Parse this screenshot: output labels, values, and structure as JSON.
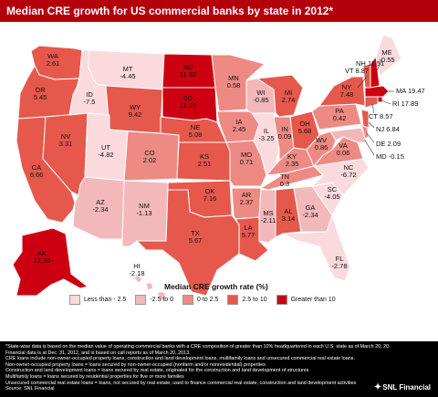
{
  "title": "Median CRE growth for US commercial banks by state in 2012*",
  "colors": {
    "lt_neg25": "#fadadd",
    "neg25_0": "#f2b8ba",
    "r0_25": "#ee8a84",
    "r25_10": "#e6584c",
    "gt10": "#cc0010"
  },
  "states": [
    {
      "abbr": "WA",
      "value": "2.61"
    },
    {
      "abbr": "OR",
      "value": "5.45"
    },
    {
      "abbr": "CA",
      "value": "6.66"
    },
    {
      "abbr": "NV",
      "value": "3.31"
    },
    {
      "abbr": "ID",
      "value": "-7.5"
    },
    {
      "abbr": "MT",
      "value": "-4.45"
    },
    {
      "abbr": "WY",
      "value": "9.42"
    },
    {
      "abbr": "UT",
      "value": "-4.82"
    },
    {
      "abbr": "AZ",
      "value": "-2.34"
    },
    {
      "abbr": "CO",
      "value": "2.02"
    },
    {
      "abbr": "NM",
      "value": "-1.13"
    },
    {
      "abbr": "ND",
      "value": "11.92"
    },
    {
      "abbr": "SD",
      "value": "11.21"
    },
    {
      "abbr": "NE",
      "value": "5.08"
    },
    {
      "abbr": "KS",
      "value": "2.51"
    },
    {
      "abbr": "OK",
      "value": "7.16"
    },
    {
      "abbr": "TX",
      "value": "5.67"
    },
    {
      "abbr": "MN",
      "value": "0.58"
    },
    {
      "abbr": "IA",
      "value": "2.45"
    },
    {
      "abbr": "MO",
      "value": "0.71"
    },
    {
      "abbr": "AR",
      "value": "2.37"
    },
    {
      "abbr": "LA",
      "value": "5.77"
    },
    {
      "abbr": "WI",
      "value": "-0.85"
    },
    {
      "abbr": "IL",
      "value": "-3.25"
    },
    {
      "abbr": "MI",
      "value": "2.74"
    },
    {
      "abbr": "IN",
      "value": "0.09"
    },
    {
      "abbr": "OH",
      "value": "5.68"
    },
    {
      "abbr": "KY",
      "value": "2.35"
    },
    {
      "abbr": "TN",
      "value": "0.3"
    },
    {
      "abbr": "MS",
      "value": "-2.11"
    },
    {
      "abbr": "AL",
      "value": "3.14"
    },
    {
      "abbr": "GA",
      "value": "-2.34"
    },
    {
      "abbr": "FL",
      "value": "-2.78"
    },
    {
      "abbr": "SC",
      "value": "-4.05"
    },
    {
      "abbr": "NC",
      "value": "-6.72"
    },
    {
      "abbr": "VA",
      "value": "0.06"
    },
    {
      "abbr": "WV",
      "value": "0.86"
    },
    {
      "abbr": "PA",
      "value": "0.42"
    },
    {
      "abbr": "NY",
      "value": "7.48"
    },
    {
      "abbr": "VT",
      "value": "8.87"
    },
    {
      "abbr": "NH",
      "value": "11.51"
    },
    {
      "abbr": "ME",
      "value": "-0.55"
    },
    {
      "abbr": "MA",
      "value": "19.47"
    },
    {
      "abbr": "RI",
      "value": "17.89"
    },
    {
      "abbr": "CT",
      "value": "8.57"
    },
    {
      "abbr": "NJ",
      "value": "6.84"
    },
    {
      "abbr": "DE",
      "value": "2.09"
    },
    {
      "abbr": "MD",
      "value": "-0.15"
    },
    {
      "abbr": "AK",
      "value": "12.36"
    },
    {
      "abbr": "HI",
      "value": "-2.18"
    }
  ],
  "legend": {
    "title": "Median CRE growth rate (%)",
    "items": [
      "Less than - 2.5",
      "-2.5 to 0",
      "0 to 2.5",
      "2.5 to 10",
      "Greater than 10"
    ]
  },
  "footer": {
    "lines": [
      "*State-wise data is based on the median value of operating commercial banks with a CRE composition of greater than 10% headquartered in each U.S. state as of March 20, 2013.",
      "Financial data is at Dec. 31, 2012, and is based on call reports as of March 20, 2013.",
      "CRE loans include non-owner-occupied property loans, construction and land development loans, multifamily loans and unsecured commercial real estate loans.",
      "Non-owner-occupied property loans = loans secured by non-owner-occupied (nonfarm and/or nonresidential) properties",
      "Construction and land development loans = loans secured by real estate, originated for the construction and land development of structures",
      "Multifamily loans = loans secured by residential properties for five or more families",
      "Unsecured commercial real estate loans = loans, not secured by real estate, used to finance commercial real estate, construction and land development activities",
      "Source: SNL Financial"
    ],
    "logo": "SNL Financial"
  }
}
